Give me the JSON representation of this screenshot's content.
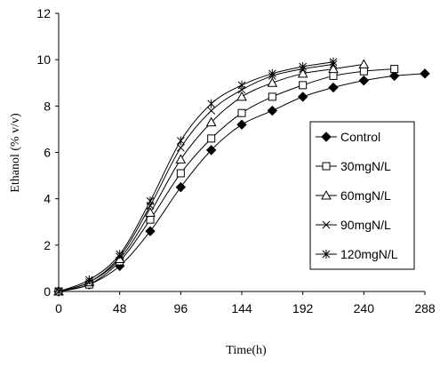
{
  "chart_data": {
    "type": "line",
    "xlabel": "Time(h)",
    "ylabel": "Ethanol (% v/v)",
    "xlim": [
      0,
      288
    ],
    "ylim": [
      0,
      12
    ],
    "xticks": [
      "0",
      "48",
      "96",
      "144",
      "192",
      "240",
      "288"
    ],
    "yticks": [
      "0",
      "2",
      "4",
      "6",
      "8",
      "10",
      "12"
    ],
    "grid": false,
    "legend_position": "right",
    "series": [
      {
        "name": "Control",
        "marker": "filled-diamond",
        "x": [
          0,
          24,
          48,
          72,
          96,
          120,
          144,
          168,
          192,
          216,
          240,
          264,
          288
        ],
        "y": [
          0.0,
          0.3,
          1.1,
          2.6,
          4.5,
          6.1,
          7.2,
          7.8,
          8.4,
          8.8,
          9.1,
          9.3,
          9.4
        ]
      },
      {
        "name": "30mgN/L",
        "marker": "open-square",
        "x": [
          0,
          24,
          48,
          72,
          96,
          120,
          144,
          168,
          192,
          216,
          240,
          264
        ],
        "y": [
          0.0,
          0.3,
          1.3,
          3.1,
          5.1,
          6.6,
          7.7,
          8.4,
          8.9,
          9.3,
          9.5,
          9.6
        ]
      },
      {
        "name": "60mgN/L",
        "marker": "open-triangle",
        "x": [
          0,
          24,
          48,
          72,
          96,
          120,
          144,
          168,
          192,
          216,
          240
        ],
        "y": [
          0.0,
          0.4,
          1.4,
          3.4,
          5.7,
          7.3,
          8.4,
          9.0,
          9.4,
          9.6,
          9.8
        ]
      },
      {
        "name": "90mgN/L",
        "marker": "x",
        "x": [
          0,
          24,
          48,
          72,
          96,
          120,
          144,
          168,
          192,
          216
        ],
        "y": [
          0.0,
          0.4,
          1.5,
          3.7,
          6.2,
          7.8,
          8.7,
          9.3,
          9.6,
          9.8
        ]
      },
      {
        "name": "120mgN/L",
        "marker": "asterisk",
        "x": [
          0,
          24,
          48,
          72,
          96,
          120,
          144,
          168,
          192,
          216
        ],
        "y": [
          0.0,
          0.5,
          1.6,
          3.9,
          6.5,
          8.1,
          8.9,
          9.4,
          9.7,
          9.9
        ]
      }
    ]
  }
}
